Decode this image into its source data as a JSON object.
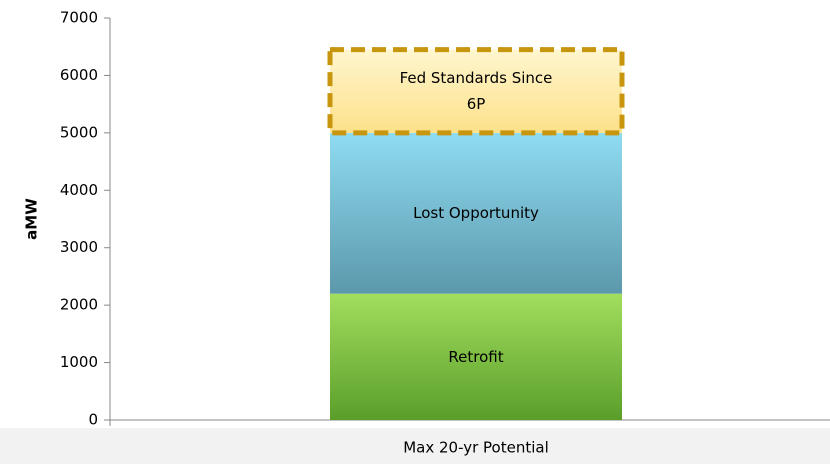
{
  "chart_data": {
    "type": "bar",
    "stacked": true,
    "ylabel": "aMW",
    "categories": [
      "Max 20-yr Potential"
    ],
    "series": [
      {
        "name": "Retrofit",
        "color": [
          "#a2de5e",
          "#5a9e2a"
        ],
        "values": [
          2200
        ]
      },
      {
        "name": "Lost Opportunity",
        "color": [
          "#8fdcf2",
          "#5c98ac"
        ],
        "values": [
          2800
        ]
      },
      {
        "name": "Fed Standards Since 6P",
        "color": [
          "#fff6cf",
          "#fde18a"
        ],
        "border": "dashed",
        "border_color": "#c8960e",
        "values": [
          1450
        ]
      }
    ],
    "ylim": [
      0,
      7000
    ],
    "yticks": [
      0,
      1000,
      2000,
      3000,
      4000,
      5000,
      6000,
      7000
    ],
    "grid": false
  }
}
